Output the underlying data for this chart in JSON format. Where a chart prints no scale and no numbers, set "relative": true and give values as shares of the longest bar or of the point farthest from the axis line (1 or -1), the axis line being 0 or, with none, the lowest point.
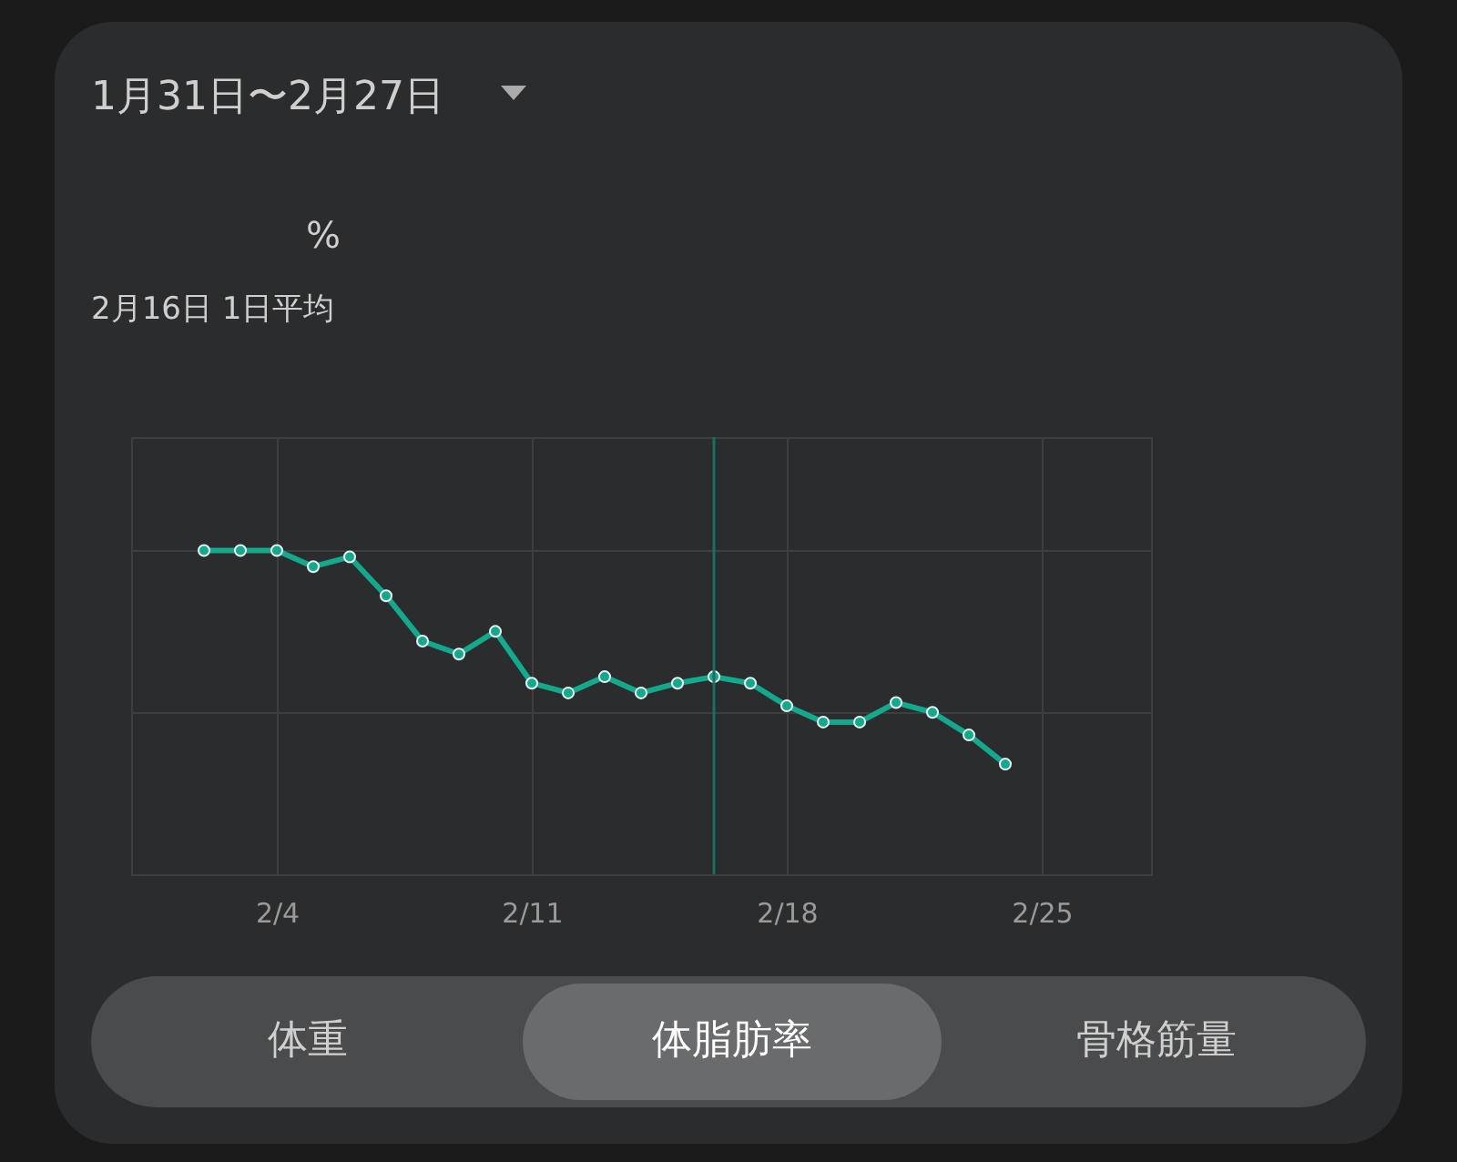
{
  "chart_data": {
    "type": "line",
    "title": "1月31日〜2月27日",
    "subtitle": "2月16日 1日平均",
    "annotations": [
      "%",
      "体重",
      "体脂肪率",
      "骨格筋量"
    ],
    "x": [
      "--02-02",
      "--02-03",
      "--02-04",
      "--02-05",
      "--02-06",
      "--02-07",
      "--02-08",
      "--02-09",
      "--02-10",
      "--02-11",
      "--02-12",
      "--02-13",
      "--02-14",
      "--02-15",
      "--02-16",
      "--02-17",
      "--02-18",
      "--02-19",
      "--02-20",
      "--02-21",
      "--02-22",
      "--02-23",
      "--02-24"
    ],
    "series": [
      {
        "color": "#14a88c",
        "values": [
          1,
          1,
          1,
          0.95,
          0.98,
          0.86,
          0.72,
          0.68,
          0.75,
          0.59,
          0.56,
          0.61,
          0.56,
          0.59,
          0.61,
          0.59,
          0.52,
          0.47,
          0.47,
          0.53,
          0.5,
          0.43,
          0.34
        ]
      }
    ],
    "relative": true,
    "xlim": [
      "--01-31",
      "--02-28"
    ],
    "xticks": [
      {
        "value": "--02-04",
        "label": "2/4"
      },
      {
        "value": "--02-11",
        "label": "2/11"
      },
      {
        "value": "--02-18",
        "label": "2/18"
      },
      {
        "value": "--02-25",
        "label": "2/25"
      }
    ],
    "ref_lines": [
      {
        "axis": "x",
        "value": "--02-16",
        "color": "#1e6f62"
      }
    ],
    "grid": true,
    "marker": "circle",
    "line_style": "solid"
  }
}
